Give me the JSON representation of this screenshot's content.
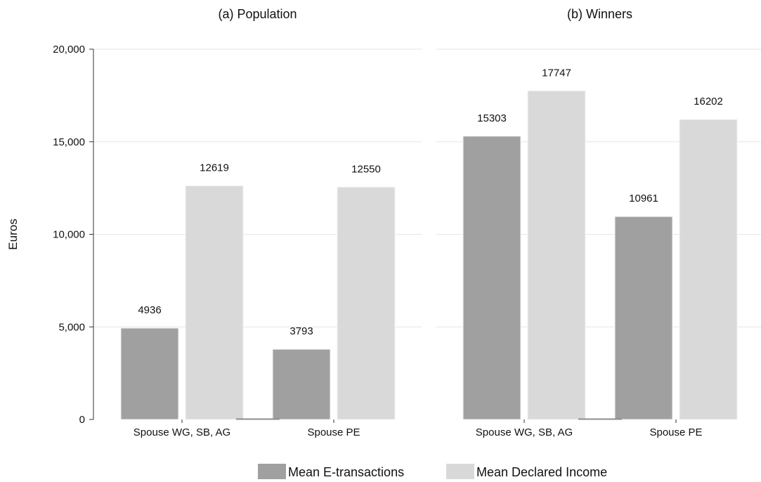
{
  "chart_data": {
    "type": "bar",
    "ylabel": "Euros",
    "ylim": [
      0,
      20000
    ],
    "yticks": [
      0,
      5000,
      10000,
      15000,
      20000
    ],
    "ytick_labels": [
      "0",
      "5,000",
      "10,000",
      "15,000",
      "20,000"
    ],
    "grid": true,
    "legend_position": "bottom-center",
    "series_names": [
      "Mean E-transactions",
      "Mean Declared Income"
    ],
    "colors": {
      "Mean E-transactions": "#a0a0a0",
      "Mean Declared Income": "#d9d9d9"
    },
    "panels": [
      {
        "title": "(a) Population",
        "categories": [
          "Spouse WG, SB, AG",
          "Spouse PE"
        ],
        "series": [
          {
            "name": "Mean E-transactions",
            "values": [
              4936,
              3793
            ]
          },
          {
            "name": "Mean Declared Income",
            "values": [
              12619,
              12550
            ]
          }
        ]
      },
      {
        "title": "(b) Winners",
        "categories": [
          "Spouse WG, SB, AG",
          "Spouse PE"
        ],
        "series": [
          {
            "name": "Mean E-transactions",
            "values": [
              15303,
              10961
            ]
          },
          {
            "name": "Mean Declared Income",
            "values": [
              17747,
              16202
            ]
          }
        ]
      }
    ]
  }
}
